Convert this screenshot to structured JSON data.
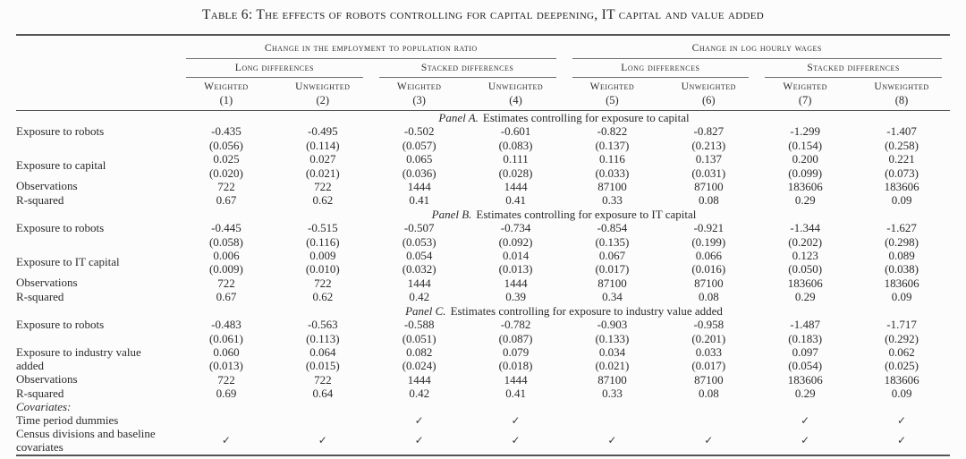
{
  "title": "Table 6: The effects of robots controlling for capital deepening, IT capital and value added",
  "colors": {
    "text": "#2b2b2b",
    "rule": "#555555"
  },
  "header": {
    "group1": "Change in the employment to population ratio",
    "group2": "Change in log hourly wages",
    "long_diff": "Long differences",
    "stacked_diff": "Stacked differences",
    "weighted": "Weighted",
    "unweighted": "Unweighted",
    "col_nums": [
      "(1)",
      "(2)",
      "(3)",
      "(4)",
      "(5)",
      "(6)",
      "(7)",
      "(8)"
    ]
  },
  "labels": {
    "exposure_robots": "Exposure to robots",
    "exposure_capital": "Exposure to capital",
    "exposure_it_capital": "Exposure to IT capital",
    "exposure_industry_va": "Exposure to industry value added",
    "observations": "Observations",
    "r_squared": "R-squared",
    "covariates": "Covariates:",
    "time_dummies": "Time period dummies",
    "census": "Census divisions and baseline covariates"
  },
  "panelA": {
    "tag": "Panel A.",
    "desc": "Estimates controlling for exposure to capital",
    "robots_c": [
      "-0.435",
      "-0.495",
      "-0.502",
      "-0.601",
      "-0.822",
      "-0.827",
      "-1.299",
      "-1.407"
    ],
    "robots_s": [
      "(0.056)",
      "(0.114)",
      "(0.057)",
      "(0.083)",
      "(0.137)",
      "(0.213)",
      "(0.154)",
      "(0.258)"
    ],
    "var2_c": [
      "0.025",
      "0.027",
      "0.065",
      "0.111",
      "0.116",
      "0.137",
      "0.200",
      "0.221"
    ],
    "var2_s": [
      "(0.020)",
      "(0.021)",
      "(0.036)",
      "(0.028)",
      "(0.033)",
      "(0.031)",
      "(0.099)",
      "(0.073)"
    ],
    "obs": [
      "722",
      "722",
      "1444",
      "1444",
      "87100",
      "87100",
      "183606",
      "183606"
    ],
    "rsq": [
      "0.67",
      "0.62",
      "0.41",
      "0.41",
      "0.33",
      "0.08",
      "0.29",
      "0.09"
    ]
  },
  "panelB": {
    "tag": "Panel B.",
    "desc": "Estimates controlling for exposure to IT capital",
    "robots_c": [
      "-0.445",
      "-0.515",
      "-0.507",
      "-0.734",
      "-0.854",
      "-0.921",
      "-1.344",
      "-1.627"
    ],
    "robots_s": [
      "(0.058)",
      "(0.116)",
      "(0.053)",
      "(0.092)",
      "(0.135)",
      "(0.199)",
      "(0.202)",
      "(0.298)"
    ],
    "var2_c": [
      "0.006",
      "0.009",
      "0.054",
      "0.014",
      "0.067",
      "0.066",
      "0.123",
      "0.089"
    ],
    "var2_s": [
      "(0.009)",
      "(0.010)",
      "(0.032)",
      "(0.013)",
      "(0.017)",
      "(0.016)",
      "(0.050)",
      "(0.038)"
    ],
    "obs": [
      "722",
      "722",
      "1444",
      "1444",
      "87100",
      "87100",
      "183606",
      "183606"
    ],
    "rsq": [
      "0.67",
      "0.62",
      "0.42",
      "0.39",
      "0.34",
      "0.08",
      "0.29",
      "0.09"
    ]
  },
  "panelC": {
    "tag": "Panel C.",
    "desc": "Estimates controlling for exposure to industry value added",
    "robots_c": [
      "-0.483",
      "-0.563",
      "-0.588",
      "-0.782",
      "-0.903",
      "-0.958",
      "-1.487",
      "-1.717"
    ],
    "robots_s": [
      "(0.061)",
      "(0.113)",
      "(0.051)",
      "(0.087)",
      "(0.133)",
      "(0.201)",
      "(0.183)",
      "(0.292)"
    ],
    "var2_c": [
      "0.060",
      "0.064",
      "0.082",
      "0.079",
      "0.034",
      "0.033",
      "0.097",
      "0.062"
    ],
    "var2_s": [
      "(0.013)",
      "(0.015)",
      "(0.024)",
      "(0.018)",
      "(0.021)",
      "(0.017)",
      "(0.054)",
      "(0.025)"
    ],
    "obs": [
      "722",
      "722",
      "1444",
      "1444",
      "87100",
      "87100",
      "183606",
      "183606"
    ],
    "rsq": [
      "0.69",
      "0.64",
      "0.42",
      "0.41",
      "0.33",
      "0.08",
      "0.29",
      "0.09"
    ]
  },
  "cov": {
    "time_checks": [
      "",
      "",
      "✓",
      "✓",
      "",
      "",
      "✓",
      "✓"
    ],
    "census_checks": [
      "✓",
      "✓",
      "✓",
      "✓",
      "✓",
      "✓",
      "✓",
      "✓"
    ]
  }
}
